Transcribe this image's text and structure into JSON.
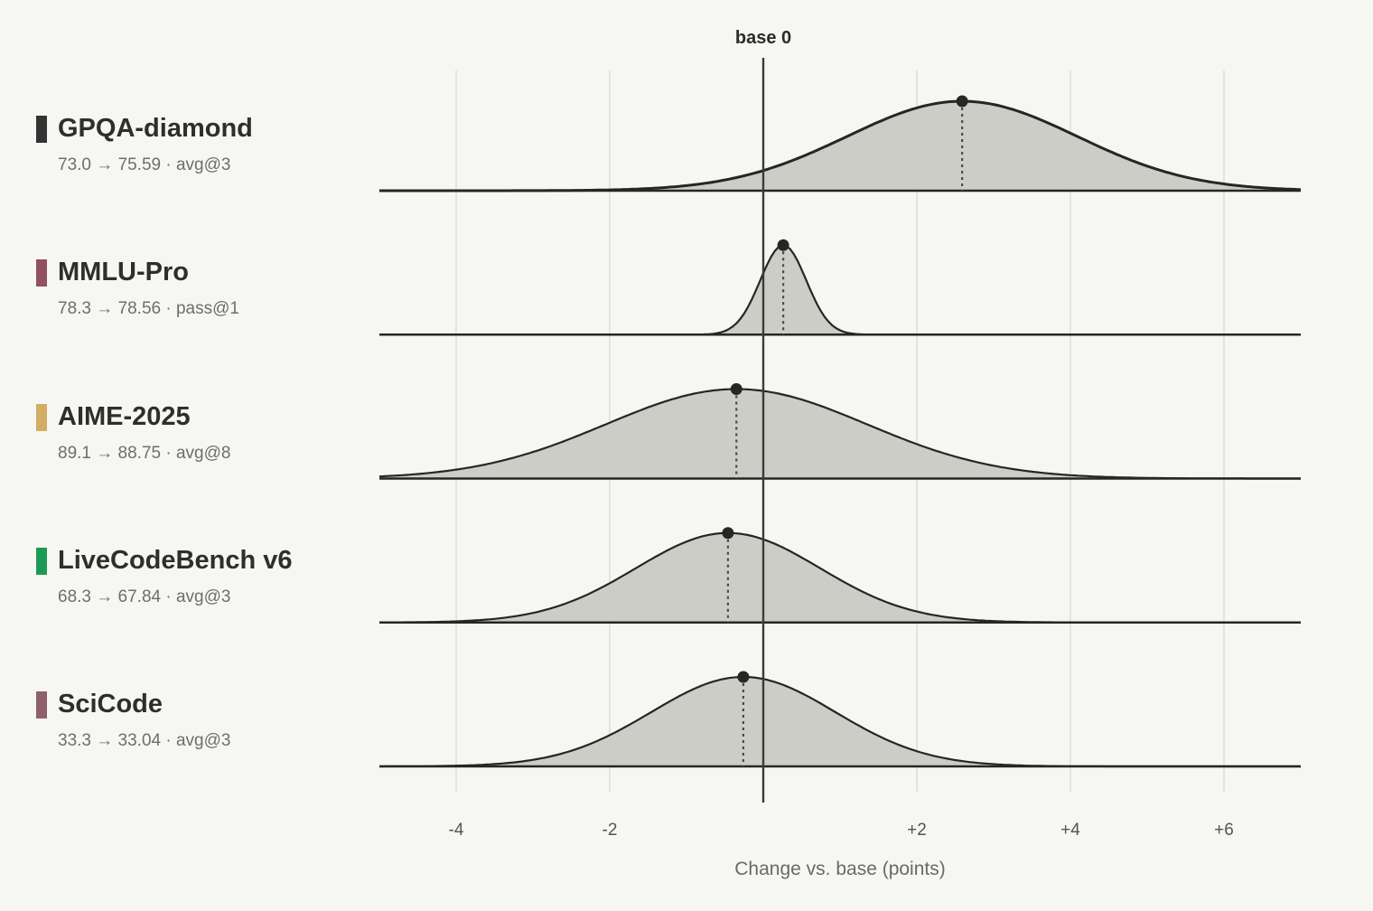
{
  "chart_data": {
    "type": "ridgeline",
    "title": "",
    "xlabel": "Change vs. base (points)",
    "ylabel": "",
    "xlim": [
      -5,
      7
    ],
    "x_ticks": [
      -4,
      -2,
      2,
      4,
      6
    ],
    "x_tick_labels": [
      "-4",
      "-2",
      "+2",
      "+4",
      "+6"
    ],
    "reference_line": {
      "x": 0,
      "label": "base 0"
    },
    "series": [
      {
        "name": "GPQA-diamond",
        "detail": "73.0 → 75.59 · avg@3",
        "color": "#333333",
        "mean": 2.59,
        "sd": 1.5,
        "baseline_score": 73.0,
        "new_score": 75.59
      },
      {
        "name": "MMLU-Pro",
        "detail": "78.3 → 78.56 · pass@1",
        "color": "#93505f",
        "mean": 0.26,
        "sd": 0.3,
        "baseline_score": 78.3,
        "new_score": 78.56
      },
      {
        "name": "AIME-2025",
        "detail": "89.1 → 88.75 · avg@8",
        "color": "#d2ad62",
        "mean": -0.35,
        "sd": 1.7,
        "baseline_score": 89.1,
        "new_score": 88.75
      },
      {
        "name": "LiveCodeBench v6",
        "detail": "68.3 → 67.84 · avg@3",
        "color": "#1f9a55",
        "mean": -0.46,
        "sd": 1.2,
        "baseline_score": 68.3,
        "new_score": 67.84
      },
      {
        "name": "SciCode",
        "detail": "33.3 → 33.04 · avg@3",
        "color": "#8f5f6a",
        "mean": -0.26,
        "sd": 1.2,
        "baseline_score": 33.3,
        "new_score": 33.04
      }
    ],
    "grid": true,
    "colors": {
      "background": "#f6f7f2",
      "fill": "#cdcdc8",
      "line": "#262624",
      "grid": "#d9dad4"
    }
  }
}
